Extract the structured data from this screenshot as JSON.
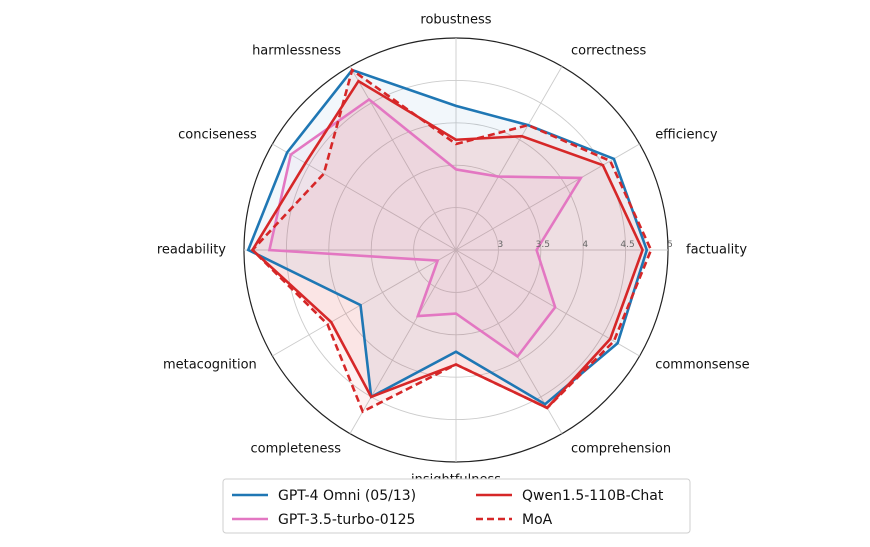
{
  "chart_data": {
    "type": "radar",
    "axes": [
      "robustness",
      "correctness",
      "efficiency",
      "factuality",
      "commonsense",
      "comprehension",
      "insightfulness",
      "completeness",
      "metacognition",
      "readability",
      "conciseness",
      "harmlessness"
    ],
    "r_ticks": [
      3,
      3.5,
      4,
      4.5,
      5
    ],
    "r_tick_labels": [
      "3",
      "3.5",
      "4",
      "4.5",
      "5"
    ],
    "rlim": [
      2.5,
      5
    ],
    "grid": true,
    "legend_position": "bottom",
    "series": [
      {
        "name": "GPT-4 Omni (05/13)",
        "color": "#1f77b4",
        "style": "solid",
        "values": [
          4.2,
          4.2,
          4.65,
          4.75,
          4.7,
          4.6,
          3.7,
          4.5,
          3.8,
          4.95,
          4.8,
          4.95
        ]
      },
      {
        "name": "GPT-3.5-turbo-0125",
        "color": "#e377c2",
        "style": "solid",
        "values": [
          3.45,
          3.5,
          4.2,
          3.45,
          3.85,
          3.95,
          3.25,
          3.4,
          2.75,
          4.7,
          4.75,
          4.55
        ]
      },
      {
        "name": "Qwen1.5-110B-Chat",
        "color": "#d62728",
        "style": "solid",
        "values": [
          3.8,
          4.05,
          4.5,
          4.7,
          4.6,
          4.65,
          3.85,
          4.5,
          4.2,
          4.9,
          4.55,
          4.8
        ]
      },
      {
        "name": "MoA",
        "color": "#d62728",
        "style": "dashed",
        "values": [
          3.75,
          4.2,
          4.6,
          4.8,
          4.65,
          4.65,
          3.85,
          4.7,
          4.25,
          4.9,
          4.3,
          4.95
        ]
      }
    ]
  }
}
